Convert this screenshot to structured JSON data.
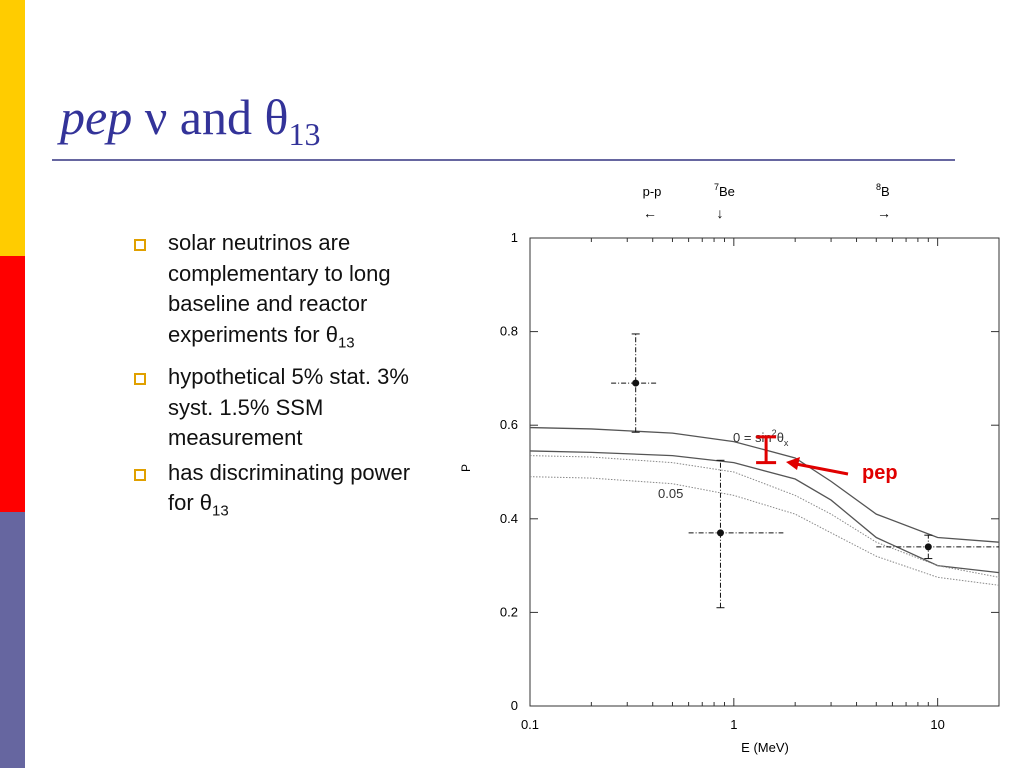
{
  "slide": {
    "title": {
      "italic": "pep",
      "rest": " ν and θ",
      "sub": "13"
    },
    "bullets": [
      {
        "text": "solar neutrinos are complementary to long baseline and reactor experiments for θ",
        "sub": "13"
      },
      {
        "text": "hypothetical 5% stat. 3% syst. 1.5% SSM measurement"
      },
      {
        "text": "has discriminating power for θ",
        "sub": "13"
      }
    ]
  },
  "chart_data": {
    "type": "line",
    "x_label": "E (MeV)",
    "y_label": "P",
    "xscale": "log",
    "xlim": [
      0.1,
      20
    ],
    "ylim": [
      0,
      1
    ],
    "xticks": [
      0.1,
      1,
      10
    ],
    "xminorticks": [
      0.2,
      0.3,
      0.4,
      0.5,
      0.6,
      0.7,
      0.8,
      0.9,
      2,
      3,
      4,
      5,
      6,
      7,
      8,
      9,
      20
    ],
    "yticks": [
      0,
      0.2,
      0.4,
      0.6,
      0.8,
      1
    ],
    "top_labels": [
      {
        "text": "p-p",
        "arrow": "←"
      },
      {
        "sup": "7",
        "text": "Be",
        "arrow": "↓"
      },
      {
        "sup": "8",
        "text": "B",
        "arrow": "→"
      }
    ],
    "series": [
      {
        "color": "#555555",
        "style": "solid",
        "x": [
          0.1,
          0.2,
          0.5,
          1,
          2,
          3,
          5,
          10,
          20
        ],
        "values": [
          0.595,
          0.592,
          0.583,
          0.565,
          0.53,
          0.48,
          0.41,
          0.36,
          0.35
        ]
      },
      {
        "color": "#555555",
        "style": "solid",
        "x": [
          0.1,
          0.2,
          0.5,
          1,
          2,
          3,
          5,
          10,
          20
        ],
        "values": [
          0.545,
          0.542,
          0.535,
          0.52,
          0.485,
          0.44,
          0.36,
          0.3,
          0.285
        ]
      },
      {
        "color": "#888888",
        "style": "dotted",
        "x": [
          0.1,
          0.2,
          0.5,
          1,
          2,
          3,
          5,
          10,
          20
        ],
        "values": [
          0.535,
          0.532,
          0.52,
          0.5,
          0.45,
          0.41,
          0.35,
          0.3,
          0.275
        ]
      },
      {
        "color": "#888888",
        "style": "dotted",
        "x": [
          0.1,
          0.2,
          0.5,
          1,
          2,
          3,
          5,
          10,
          20
        ],
        "values": [
          0.49,
          0.487,
          0.475,
          0.45,
          0.41,
          0.37,
          0.32,
          0.275,
          0.258
        ]
      }
    ],
    "points": {
      "color": "#111111",
      "x": [
        0.33,
        0.86,
        9
      ],
      "values": [
        0.69,
        0.37,
        0.34
      ],
      "x_low": [
        0.25,
        0.6,
        5
      ],
      "x_high": [
        0.42,
        1.75,
        20
      ],
      "y_low": [
        0.585,
        0.21,
        0.315
      ],
      "y_high": [
        0.795,
        0.525,
        0.365
      ]
    },
    "pep_bar": {
      "color": "#e00000",
      "x": 1.44,
      "y_low": 0.52,
      "y_high": 0.575
    },
    "curve_labels": [
      {
        "text": "0 = sin",
        "sup": "2",
        "mid": "θ",
        "sub": "x"
      },
      {
        "text": "0.05"
      }
    ],
    "annotation": {
      "text": "pep",
      "color": "#e00000"
    }
  }
}
